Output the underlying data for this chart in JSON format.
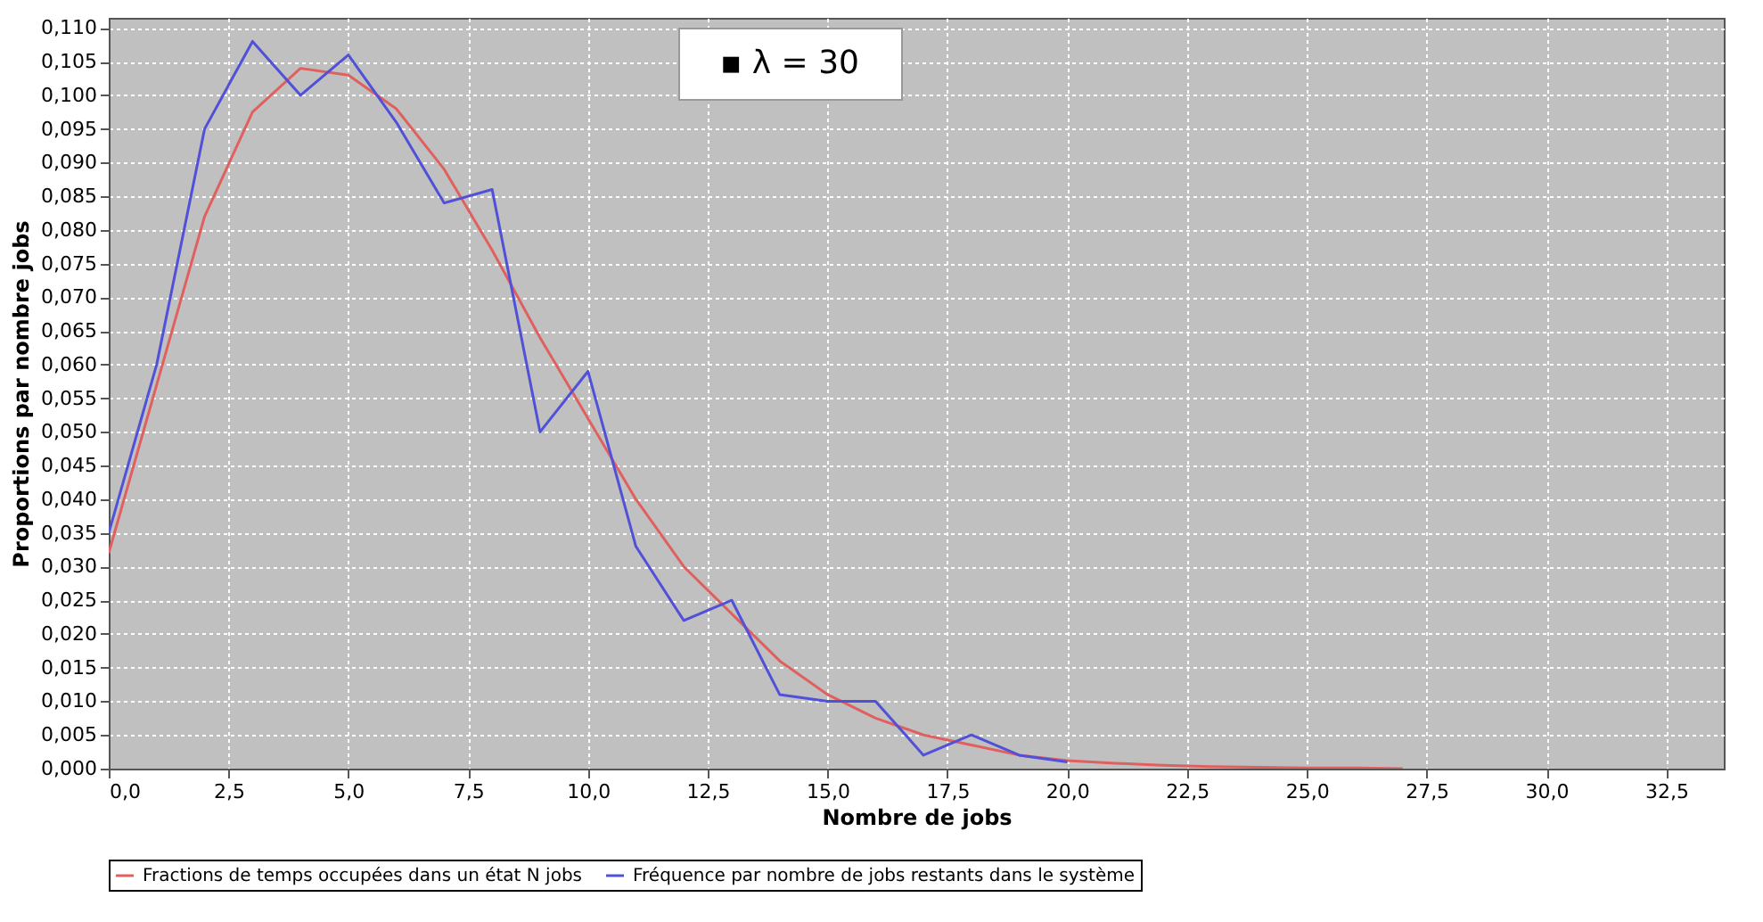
{
  "chart_data": {
    "type": "line",
    "xlabel": "Nombre de jobs",
    "ylabel": "Proportions par nombre jobs",
    "annotations": [
      "▪   λ = 30"
    ],
    "x": [
      0,
      1,
      2,
      3,
      4,
      5,
      6,
      7,
      8,
      9,
      10,
      11,
      12,
      13,
      14,
      15,
      16,
      17,
      18,
      19,
      20,
      21,
      22,
      23,
      24,
      25,
      26,
      27
    ],
    "series": [
      {
        "name": "Fractions de temps occupées dans un état N jobs",
        "color": "#e06060",
        "values": [
          0.032,
          0.057,
          0.082,
          0.0975,
          0.104,
          0.103,
          0.098,
          0.089,
          0.077,
          0.064,
          0.052,
          0.04,
          0.03,
          0.023,
          0.016,
          0.011,
          0.0075,
          0.005,
          0.0035,
          0.002,
          0.0012,
          0.0008,
          0.0005,
          0.0003,
          0.0002,
          0.0001,
          0.0001,
          0.0
        ]
      },
      {
        "name": "Fréquence par nombre de jobs restants dans le système",
        "color": "#5050d8",
        "x": [
          0,
          1,
          2,
          3,
          4,
          5,
          6,
          7,
          8,
          9,
          10,
          11,
          12,
          13,
          14,
          15,
          16,
          17,
          18,
          19,
          20
        ],
        "values": [
          0.035,
          0.06,
          0.095,
          0.108,
          0.1,
          0.106,
          0.096,
          0.084,
          0.086,
          0.05,
          0.059,
          0.033,
          0.022,
          0.025,
          0.011,
          0.01,
          0.01,
          0.002,
          0.005,
          0.002,
          0.001
        ]
      }
    ],
    "xlim": [
      0,
      33.7
    ],
    "ylim": [
      0,
      0.1115
    ],
    "xticks": [
      {
        "value": 0,
        "label": "0,0"
      },
      {
        "value": 2.5,
        "label": "2,5"
      },
      {
        "value": 5,
        "label": "5,0"
      },
      {
        "value": 7.5,
        "label": "7,5"
      },
      {
        "value": 10,
        "label": "10,0"
      },
      {
        "value": 12.5,
        "label": "12,5"
      },
      {
        "value": 15,
        "label": "15,0"
      },
      {
        "value": 17.5,
        "label": "17,5"
      },
      {
        "value": 20,
        "label": "20,0"
      },
      {
        "value": 22.5,
        "label": "22,5"
      },
      {
        "value": 25,
        "label": "25,0"
      },
      {
        "value": 27.5,
        "label": "27,5"
      },
      {
        "value": 30,
        "label": "30,0"
      },
      {
        "value": 32.5,
        "label": "32,5"
      }
    ],
    "yticks": [
      {
        "value": 0,
        "label": "0,000"
      },
      {
        "value": 0.005,
        "label": "0,005"
      },
      {
        "value": 0.01,
        "label": "0,010"
      },
      {
        "value": 0.015,
        "label": "0,015"
      },
      {
        "value": 0.02,
        "label": "0,020"
      },
      {
        "value": 0.025,
        "label": "0,025"
      },
      {
        "value": 0.03,
        "label": "0,030"
      },
      {
        "value": 0.035,
        "label": "0,035"
      },
      {
        "value": 0.04,
        "label": "0,040"
      },
      {
        "value": 0.045,
        "label": "0,045"
      },
      {
        "value": 0.05,
        "label": "0,050"
      },
      {
        "value": 0.055,
        "label": "0,055"
      },
      {
        "value": 0.06,
        "label": "0,060"
      },
      {
        "value": 0.065,
        "label": "0,065"
      },
      {
        "value": 0.07,
        "label": "0,070"
      },
      {
        "value": 0.075,
        "label": "0,075"
      },
      {
        "value": 0.08,
        "label": "0,080"
      },
      {
        "value": 0.085,
        "label": "0,085"
      },
      {
        "value": 0.09,
        "label": "0,090"
      },
      {
        "value": 0.095,
        "label": "0,095"
      },
      {
        "value": 0.1,
        "label": "0,100"
      },
      {
        "value": 0.105,
        "label": "0,105"
      },
      {
        "value": 0.11,
        "label": "0,110"
      }
    ],
    "grid": true,
    "legend": "bottom",
    "marker": "none",
    "line_style": "solid"
  }
}
